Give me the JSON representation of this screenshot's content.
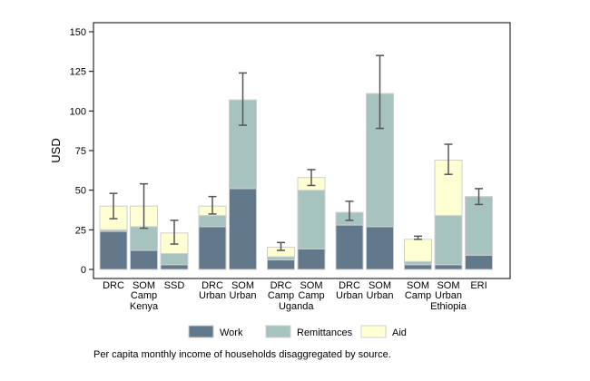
{
  "chart_data": {
    "type": "bar",
    "stacked": true,
    "ylabel": "USD",
    "ylim": [
      0,
      150
    ],
    "yticks": [
      0,
      25,
      50,
      75,
      100,
      125,
      150
    ],
    "grid": false,
    "legend_position": "bottom",
    "caption": "Per capita monthly income of households disaggregated by source.",
    "colors": {
      "Work": "#61798b",
      "Remittances": "#a7c3bf",
      "Aid": "#ffffd4",
      "edge": "#cfcfcf",
      "errorbar": "#555555"
    },
    "series": [
      {
        "name": "Work"
      },
      {
        "name": "Remittances"
      },
      {
        "name": "Aid"
      }
    ],
    "groups": [
      {
        "name": "Kenya",
        "bars": [
          {
            "label": [
              "DRC"
            ],
            "values": [
              24,
              1,
              15
            ],
            "ci": [
              32,
              48
            ]
          },
          {
            "label": [
              "SOM",
              "Camp"
            ],
            "values": [
              12,
              15,
              13
            ],
            "ci": [
              26,
              54
            ]
          },
          {
            "label": [
              "SSD"
            ],
            "values": [
              3,
              7,
              13
            ],
            "ci": [
              16,
              31
            ]
          }
        ]
      },
      {
        "name": "",
        "bars": [
          {
            "label": [
              "DRC",
              "Urban"
            ],
            "values": [
              27,
              7,
              6
            ],
            "ci": [
              35,
              46
            ]
          },
          {
            "label": [
              "SOM",
              "Urban"
            ],
            "values": [
              51,
              56,
              0
            ],
            "ci": [
              91,
              124
            ]
          }
        ]
      },
      {
        "name": "Uganda",
        "bars": [
          {
            "label": [
              "DRC",
              "Camp"
            ],
            "values": [
              6,
              2,
              6
            ],
            "ci": [
              12,
              17
            ]
          },
          {
            "label": [
              "SOM",
              "Camp"
            ],
            "values": [
              13,
              37,
              8
            ],
            "ci": [
              53,
              63
            ]
          }
        ]
      },
      {
        "name": "",
        "bars": [
          {
            "label": [
              "DRC",
              "Urban"
            ],
            "values": [
              28,
              8,
              0
            ],
            "ci": [
              31,
              43
            ]
          },
          {
            "label": [
              "SOM",
              "Urban"
            ],
            "values": [
              27,
              84,
              0
            ],
            "ci": [
              89,
              135
            ]
          }
        ]
      },
      {
        "name": "Ethiopia",
        "bars": [
          {
            "label": [
              "SOM",
              "Camp"
            ],
            "values": [
              3,
              2,
              14
            ],
            "ci": [
              19,
              21
            ]
          },
          {
            "label": [
              "SOM",
              "Urban"
            ],
            "values": [
              3,
              31,
              35
            ],
            "ci": [
              60,
              79
            ]
          },
          {
            "label": [
              "ERI"
            ],
            "values": [
              9,
              37,
              0
            ],
            "ci": [
              41,
              51
            ]
          }
        ]
      }
    ]
  }
}
